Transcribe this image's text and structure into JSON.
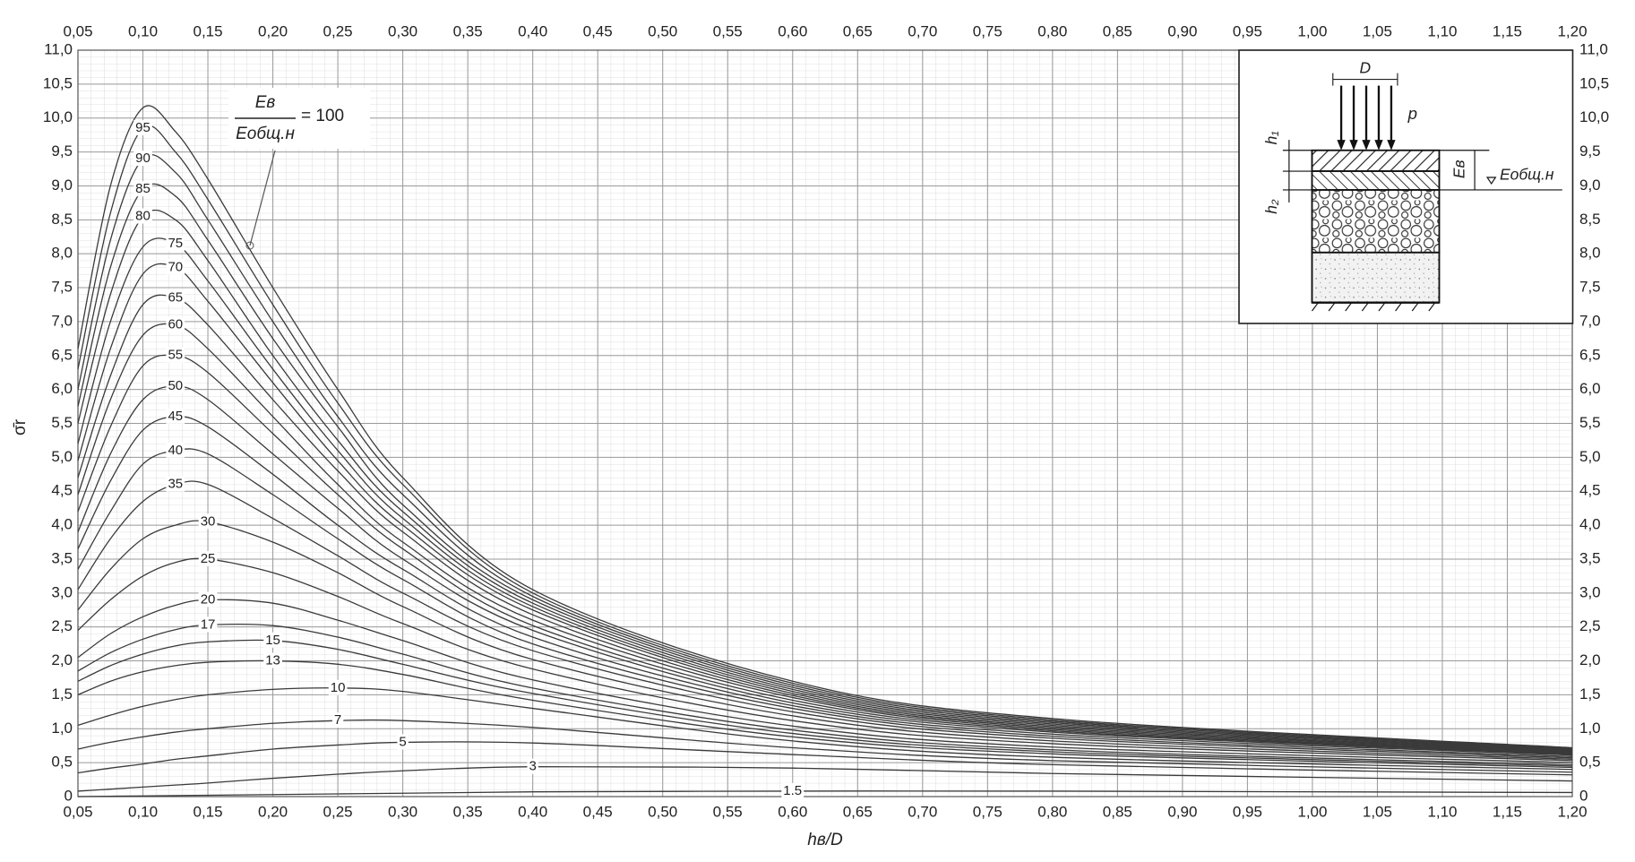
{
  "chart_data": {
    "type": "line",
    "x_label": "hв/D",
    "y_label": "σ̄r",
    "x": [
      0.05,
      0.075,
      0.1,
      0.125,
      0.15,
      0.2,
      0.25,
      0.3,
      0.4,
      0.6,
      0.8,
      1.2
    ],
    "color": "#3a3a3a",
    "grid": true,
    "annotation": {
      "numerator": "Eв",
      "denominator": "Eобщ.н"
    },
    "inset_labels": [
      "D",
      "p",
      "h₁",
      "h₂",
      "Eв",
      "Eобщ.н"
    ],
    "series": [
      {
        "name": "= 100",
        "values": [
          6.6,
          9.0,
          10.15,
          9.8,
          9.1,
          7.5,
          6.0,
          4.7,
          3.05,
          1.7,
          1.15,
          0.72
        ]
      },
      {
        "name": "95",
        "values": [
          6.3,
          8.6,
          9.85,
          9.5,
          8.8,
          7.25,
          5.8,
          4.6,
          3.0,
          1.67,
          1.13,
          0.71
        ]
      },
      {
        "name": "90",
        "values": [
          6.0,
          8.2,
          9.4,
          9.2,
          8.5,
          7.0,
          5.6,
          4.45,
          2.95,
          1.64,
          1.11,
          0.7
        ]
      },
      {
        "name": "85",
        "values": [
          5.75,
          7.8,
          8.95,
          8.85,
          8.2,
          6.75,
          5.45,
          4.3,
          2.9,
          1.61,
          1.09,
          0.69
        ]
      },
      {
        "name": "80",
        "values": [
          5.5,
          7.4,
          8.55,
          8.5,
          7.9,
          6.5,
          5.25,
          4.2,
          2.85,
          1.58,
          1.07,
          0.68
        ]
      },
      {
        "name": "75",
        "values": [
          5.2,
          7.0,
          8.1,
          8.15,
          7.6,
          6.3,
          5.1,
          4.1,
          2.8,
          1.55,
          1.05,
          0.67
        ]
      },
      {
        "name": "70",
        "values": [
          4.95,
          6.6,
          7.7,
          7.8,
          7.3,
          6.1,
          4.95,
          4.0,
          2.75,
          1.52,
          1.03,
          0.66
        ]
      },
      {
        "name": "65",
        "values": [
          4.7,
          6.2,
          7.25,
          7.35,
          6.95,
          5.85,
          4.8,
          3.9,
          2.68,
          1.49,
          1.01,
          0.65
        ]
      },
      {
        "name": "60",
        "values": [
          4.45,
          5.85,
          6.8,
          6.95,
          6.6,
          5.6,
          4.6,
          3.75,
          2.6,
          1.46,
          0.99,
          0.64
        ]
      },
      {
        "name": "55",
        "values": [
          4.2,
          5.45,
          6.35,
          6.5,
          6.25,
          5.35,
          4.45,
          3.65,
          2.52,
          1.42,
          0.97,
          0.63
        ]
      },
      {
        "name": "50",
        "values": [
          3.9,
          5.05,
          5.85,
          6.05,
          5.85,
          5.05,
          4.25,
          3.5,
          2.45,
          1.38,
          0.95,
          0.62
        ]
      },
      {
        "name": "45",
        "values": [
          3.65,
          4.65,
          5.4,
          5.6,
          5.45,
          4.75,
          4.0,
          3.35,
          2.35,
          1.34,
          0.92,
          0.61
        ]
      },
      {
        "name": "40",
        "values": [
          3.35,
          4.2,
          4.9,
          5.1,
          5.05,
          4.45,
          3.8,
          3.2,
          2.25,
          1.3,
          0.89,
          0.59
        ]
      },
      {
        "name": "35",
        "values": [
          3.05,
          3.8,
          4.35,
          4.6,
          4.6,
          4.1,
          3.55,
          3.0,
          2.15,
          1.25,
          0.86,
          0.57
        ]
      },
      {
        "name": "30",
        "values": [
          2.75,
          3.35,
          3.8,
          4.0,
          4.05,
          3.75,
          3.3,
          2.8,
          2.02,
          1.19,
          0.82,
          0.55
        ]
      },
      {
        "name": "25",
        "values": [
          2.45,
          2.9,
          3.25,
          3.45,
          3.5,
          3.3,
          2.95,
          2.55,
          1.88,
          1.12,
          0.78,
          0.53
        ]
      },
      {
        "name": "20",
        "values": [
          2.05,
          2.4,
          2.65,
          2.82,
          2.9,
          2.85,
          2.6,
          2.3,
          1.72,
          1.04,
          0.73,
          0.5
        ]
      },
      {
        "name": "17",
        "values": [
          1.85,
          2.12,
          2.32,
          2.46,
          2.53,
          2.52,
          2.35,
          2.1,
          1.6,
          0.98,
          0.69,
          0.47
        ]
      },
      {
        "name": "15",
        "values": [
          1.7,
          1.93,
          2.1,
          2.22,
          2.28,
          2.3,
          2.17,
          1.95,
          1.52,
          0.93,
          0.66,
          0.45
        ]
      },
      {
        "name": "13",
        "values": [
          1.5,
          1.7,
          1.84,
          1.93,
          1.98,
          2.0,
          1.95,
          1.8,
          1.42,
          0.88,
          0.63,
          0.43
        ]
      },
      {
        "name": "10",
        "values": [
          1.05,
          1.2,
          1.33,
          1.43,
          1.5,
          1.58,
          1.6,
          1.55,
          1.3,
          0.82,
          0.58,
          0.4
        ]
      },
      {
        "name": "7",
        "values": [
          0.7,
          0.8,
          0.88,
          0.95,
          1.0,
          1.08,
          1.12,
          1.12,
          1.02,
          0.72,
          0.53,
          0.36
        ]
      },
      {
        "name": "5",
        "values": [
          0.35,
          0.42,
          0.48,
          0.55,
          0.6,
          0.7,
          0.76,
          0.8,
          0.79,
          0.62,
          0.47,
          0.32
        ]
      },
      {
        "name": "3",
        "values": [
          0.08,
          0.11,
          0.14,
          0.17,
          0.2,
          0.27,
          0.33,
          0.38,
          0.44,
          0.42,
          0.34,
          0.23
        ]
      },
      {
        "name": "1.5",
        "values": [
          0,
          0.005,
          0.01,
          0.015,
          0.02,
          0.03,
          0.04,
          0.05,
          0.07,
          0.08,
          0.08,
          0.06
        ]
      }
    ],
    "xlim": [
      0.05,
      1.2
    ],
    "xticks": [
      {
        "value": 0.05,
        "label": "0,05"
      },
      {
        "value": 0.1,
        "label": "0,10"
      },
      {
        "value": 0.15,
        "label": "0,15"
      },
      {
        "value": 0.2,
        "label": "0,20"
      },
      {
        "value": 0.25,
        "label": "0,25"
      },
      {
        "value": 0.3,
        "label": "0,30"
      },
      {
        "value": 0.35,
        "label": "0,35"
      },
      {
        "value": 0.4,
        "label": "0,40"
      },
      {
        "value": 0.45,
        "label": "0,45"
      },
      {
        "value": 0.5,
        "label": "0,50"
      },
      {
        "value": 0.55,
        "label": "0,55"
      },
      {
        "value": 0.6,
        "label": "0,60"
      },
      {
        "value": 0.65,
        "label": "0,65"
      },
      {
        "value": 0.7,
        "label": "0,70"
      },
      {
        "value": 0.75,
        "label": "0,75"
      },
      {
        "value": 0.8,
        "label": "0,80"
      },
      {
        "value": 0.85,
        "label": "0,85"
      },
      {
        "value": 0.9,
        "label": "0,90"
      },
      {
        "value": 0.95,
        "label": "0,95"
      },
      {
        "value": 1.0,
        "label": "1,00"
      },
      {
        "value": 1.05,
        "label": "1,05"
      },
      {
        "value": 1.1,
        "label": "1,10"
      },
      {
        "value": 1.15,
        "label": "1,15"
      },
      {
        "value": 1.2,
        "label": "1,20"
      }
    ],
    "ylim": [
      0,
      11
    ],
    "yticks": [
      0,
      {
        "value": 0.5,
        "label": "0,5"
      },
      {
        "value": 1,
        "label": "1,0"
      },
      {
        "value": 1.5,
        "label": "1,5"
      },
      {
        "value": 2,
        "label": "2,0"
      },
      {
        "value": 2.5,
        "label": "2,5"
      },
      {
        "value": 3,
        "label": "3,0"
      },
      {
        "value": 3.5,
        "label": "3,5"
      },
      {
        "value": 4,
        "label": "4,0"
      },
      {
        "value": 4.5,
        "label": "4,5"
      },
      {
        "value": 5,
        "label": "5,0"
      },
      {
        "value": 5.5,
        "label": "5,5"
      },
      {
        "value": 6,
        "label": "6,0"
      },
      {
        "value": 6.5,
        "label": "6,5"
      },
      {
        "value": 7,
        "label": "7,0"
      },
      {
        "value": 7.5,
        "label": "7,5"
      },
      {
        "value": 8,
        "label": "8,0"
      },
      {
        "value": 8.5,
        "label": "8,5"
      },
      {
        "value": 9,
        "label": "9,0"
      },
      {
        "value": 9.5,
        "label": "9,5"
      },
      {
        "value": 10,
        "label": "10,0"
      },
      {
        "value": 10.5,
        "label": "10,5"
      },
      {
        "value": 11,
        "label": "11,0"
      }
    ]
  }
}
